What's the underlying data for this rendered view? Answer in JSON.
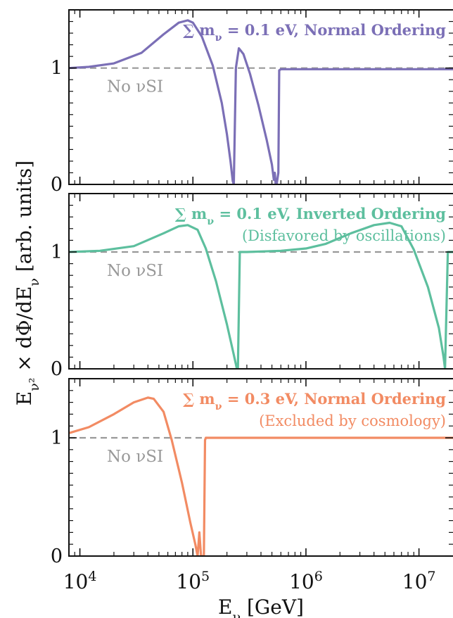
{
  "chart_data": {
    "type": "line",
    "ylabel": "E_ν² × dΦ/dE_ν [arb. units]",
    "xlabel": "E_ν [GeV]",
    "x_scale": "log",
    "xlim": [
      8000,
      20000000
    ],
    "x_ticks": [
      {
        "value": 10000,
        "label": "10^4"
      },
      {
        "value": 100000,
        "label": "10^5"
      },
      {
        "value": 1000000,
        "label": "10^6"
      },
      {
        "value": 10000000,
        "label": "10^7"
      }
    ],
    "y_ticks": [
      0,
      1
    ],
    "colors": {
      "panel1": "#7b6fb6",
      "panel2": "#5dbf9e",
      "panel3": "#f28b63",
      "reference": "#999999"
    },
    "panels": [
      {
        "title": "∑ m_ν = 0.1 eV, Normal Ordering",
        "subtitle": "",
        "color": "#7b6fb6",
        "ylim": [
          0,
          1.5
        ],
        "reference": {
          "label": "No νSI",
          "value": 1
        },
        "series": {
          "x": [
            8000,
            12000,
            20000,
            35000,
            55000,
            75000,
            90000,
            100000,
            120000,
            150000,
            180000,
            200000,
            215000,
            225000,
            230000,
            240000,
            255000,
            280000,
            320000,
            380000,
            450000,
            500000,
            520000,
            530000,
            540000,
            550000,
            570000,
            580000,
            600000,
            1000000,
            5000000,
            20000000
          ],
          "y": [
            1.0,
            1.01,
            1.04,
            1.13,
            1.29,
            1.39,
            1.41,
            1.39,
            1.27,
            1.02,
            0.7,
            0.43,
            0.2,
            0.03,
            0.0,
            1.0,
            1.17,
            1.12,
            0.95,
            0.68,
            0.38,
            0.17,
            0.04,
            0.1,
            0.0,
            0.0,
            0.1,
            0.98,
            0.99,
            0.99,
            0.99,
            0.99
          ]
        }
      },
      {
        "title": "∑ m_ν = 0.1 eV, Inverted Ordering",
        "subtitle": "(Disfavored by oscillations)",
        "color": "#5dbf9e",
        "ylim": [
          0,
          1.5
        ],
        "reference": {
          "label": "No νSI",
          "value": 1
        },
        "series": {
          "x": [
            8000,
            15000,
            30000,
            55000,
            75000,
            90000,
            110000,
            130000,
            160000,
            200000,
            230000,
            245000,
            250000,
            260000,
            300000,
            600000,
            1000000,
            1500000,
            2500000,
            4000000,
            5500000,
            7000000,
            9000000,
            12000000,
            15000000,
            16500000,
            17000000,
            18000000,
            20000000
          ],
          "y": [
            1.0,
            1.01,
            1.05,
            1.16,
            1.22,
            1.23,
            1.19,
            1.03,
            0.75,
            0.38,
            0.12,
            0.0,
            0.0,
            1.0,
            1.0,
            1.01,
            1.03,
            1.07,
            1.16,
            1.23,
            1.25,
            1.22,
            1.02,
            0.7,
            0.35,
            0.1,
            0.0,
            1.0,
            1.0
          ]
        }
      },
      {
        "title": "∑ m_ν = 0.3 eV, Normal Ordering",
        "subtitle": "(Excluded by cosmology)",
        "color": "#f28b63",
        "ylim": [
          0,
          1.5
        ],
        "reference": {
          "label": "No νSI",
          "value": 1
        },
        "series": {
          "x": [
            8000,
            12000,
            20000,
            30000,
            40000,
            45000,
            55000,
            65000,
            80000,
            95000,
            105000,
            110000,
            114000,
            118000,
            121000,
            125000,
            128000,
            130000,
            200000,
            1000000,
            20000000
          ],
          "y": [
            1.04,
            1.09,
            1.2,
            1.3,
            1.34,
            1.33,
            1.22,
            0.98,
            0.62,
            0.28,
            0.1,
            0.0,
            0.2,
            0.0,
            0.0,
            0.0,
            0.98,
            1.0,
            1.0,
            1.0,
            1.0
          ]
        }
      }
    ]
  }
}
